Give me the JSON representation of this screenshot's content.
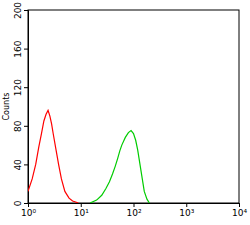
{
  "chart_data": {
    "type": "line",
    "log": "x",
    "y_label": "Counts",
    "xlim": [
      1,
      10000
    ],
    "xticks": [
      {
        "value": 1,
        "label": "10⁰"
      },
      {
        "value": 10,
        "label": "10¹"
      },
      {
        "value": 100,
        "label": "10²"
      },
      {
        "value": 1000,
        "label": "10³"
      },
      {
        "value": 10000,
        "label": "10⁴"
      }
    ],
    "ylim": [
      0,
      200
    ],
    "yticks": [
      0,
      40,
      80,
      120,
      160,
      200
    ],
    "series": [
      {
        "color": "#ff0000",
        "x": [
          1,
          1.2,
          1.4,
          1.6,
          1.8,
          2.0,
          2.2,
          2.4,
          2.6,
          2.8,
          3.0,
          3.4,
          3.8,
          4.3,
          5,
          6,
          7,
          8,
          9
        ],
        "values": [
          12,
          25,
          40,
          58,
          72,
          85,
          92,
          96,
          90,
          82,
          72,
          55,
          40,
          25,
          12,
          5,
          2,
          1,
          0
        ]
      },
      {
        "color": "#00cc00",
        "x": [
          15,
          20,
          25,
          30,
          35,
          40,
          45,
          50,
          55,
          60,
          70,
          80,
          90,
          100,
          110,
          120,
          140,
          160,
          180,
          200
        ],
        "values": [
          0,
          3,
          8,
          15,
          22,
          30,
          38,
          46,
          54,
          60,
          68,
          73,
          75,
          72,
          65,
          55,
          32,
          12,
          4,
          0
        ]
      }
    ]
  }
}
